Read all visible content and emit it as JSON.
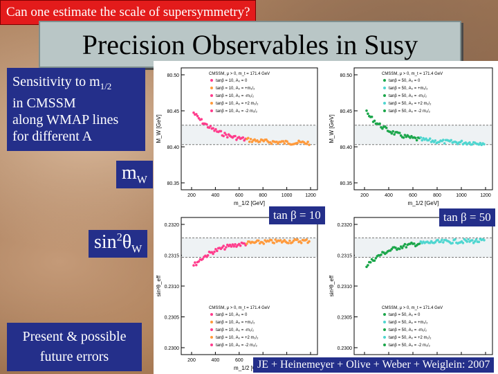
{
  "header": {
    "question": "Can one estimate the scale of supersymmetry?",
    "title": "Precision Observables in Susy"
  },
  "info": {
    "line1": "Sensitivity to m",
    "line1_sub": "1/2",
    "line2": "in CMSSM",
    "line3": "along WMAP lines",
    "line4": "for different A"
  },
  "labels": {
    "mw": "m",
    "mw_sub": "W",
    "sin2": "sin",
    "sin2_sup": "2",
    "sin2_theta": "θ",
    "sin2_sub": "W",
    "tanb10": "tan β = 10",
    "tanb50": "tan β = 50"
  },
  "bottom": {
    "line1": "Present & possible",
    "line2": "future errors"
  },
  "credit": "JE + Heinemeyer + Olive + Weber + Weiglein: 2007",
  "colors": {
    "red_tag": "#e31b1b",
    "navy": "#242f8a",
    "title_bg": "#b9c6c6",
    "pink": "#ff3c8c",
    "green": "#1ba64a",
    "cyan": "#4fd6d0"
  },
  "plots": {
    "mw": {
      "ylabel": "M_W [GeV]",
      "xlabel": "m_1/2 [GeV]",
      "yticks": [
        "80.50",
        "80.45",
        "80.40",
        "80.35"
      ],
      "xticks": [
        "200",
        "400",
        "600",
        "800",
        "1000",
        "1200"
      ]
    },
    "sw": {
      "ylabel": "sin²θ_eff",
      "xlabel": "m_1/2 [GeV]",
      "yticks": [
        "0.2320",
        "0.2315",
        "0.2310",
        "0.2305",
        "0.2300"
      ],
      "xticks": [
        "200",
        "400",
        "600",
        "800",
        "1000",
        "1200"
      ]
    },
    "legend_left_top": {
      "head": "CMSSM, μ > 0, m_t = 171.4 GeV",
      "items": [
        "tanβ = 10, A₀ = 0",
        "tanβ = 10, A₀ = +m₁/₂",
        "tanβ = 10, A₀ = -m₁/₂",
        "tanβ = 10, A₀ = +2 m₁/₂",
        "tanβ = 10, A₀ = -2 m₁/₂"
      ]
    },
    "legend_right_top": {
      "head": "CMSSM, μ > 0, m_t = 171.4 GeV",
      "items": [
        "tanβ = 50, A₀ = 0",
        "tanβ = 50, A₀ = +m₁/₂",
        "tanβ = 50, A₀ = -m₁/₂",
        "tanβ = 50, A₀ = +2 m₁/₂",
        "tanβ = 50, A₀ = -2 m₁/₂"
      ]
    }
  }
}
